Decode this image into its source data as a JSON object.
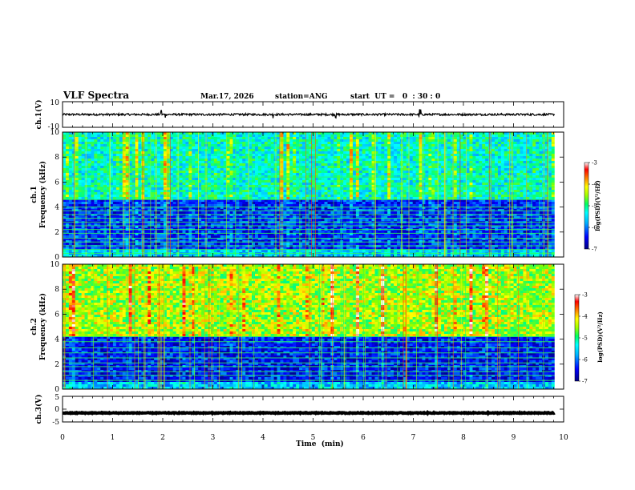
{
  "header": {
    "title": "VLF Spectra",
    "date": "Mar.17, 2026",
    "station": "station=ANG",
    "start_time": "start  UT =   0  : 30 : 0"
  },
  "chart_data": [
    {
      "type": "line",
      "name": "ch.1 waveform",
      "ylabel": "ch.1(V)",
      "ylim": [
        -10,
        10
      ],
      "yticks": [
        "10",
        "-10"
      ],
      "baseline": 0,
      "noise_amplitude": 0.8,
      "spike_times_min": [
        1.97,
        2.05,
        4.2,
        5.45,
        7.12,
        7.15
      ],
      "spike_amplitude": 3.5
    },
    {
      "type": "heatmap",
      "name": "ch.1 spectrogram",
      "ylabel": "ch.1\nFrequency (kHz)",
      "ylabel_line1": "ch.1",
      "ylabel_line2": "Frequency (kHz)",
      "ylim": [
        0,
        10
      ],
      "yticks": [
        "0",
        "2",
        "4",
        "6",
        "8",
        "10"
      ],
      "colorbar": {
        "label": "log(PSD)(V²/Hz)",
        "range": [
          -7,
          -3
        ],
        "ticks": [
          "-3",
          "-4",
          "-5",
          "-6",
          "-7"
        ]
      },
      "upper_band_level": -5.2,
      "lower_band_level": -6.3,
      "transition_khz": 4.6,
      "lines_khz": [
        0.3,
        0.6,
        0.9,
        1.2,
        1.5,
        1.9,
        2.2,
        2.5,
        2.8,
        3.1,
        3.4,
        3.7,
        4.0,
        4.6,
        5.6,
        6.4
      ]
    },
    {
      "type": "heatmap",
      "name": "ch.2 spectrogram",
      "ylabel": "ch.2\nFrequency (kHz)",
      "ylabel_line1": "ch.2",
      "ylabel_line2": "Frequency (kHz)",
      "ylim": [
        0,
        10
      ],
      "yticks": [
        "0",
        "2",
        "4",
        "6",
        "8",
        "10"
      ],
      "colorbar": {
        "label": "log(PSD)(V²/Hz)",
        "range": [
          -7,
          -3
        ],
        "ticks": [
          "-3",
          "-4",
          "-5",
          "-6",
          "-7"
        ]
      },
      "upper_band_level": -4.4,
      "lower_band_level": -6.4,
      "transition_khz": 4.2,
      "lines_khz": [
        0.7,
        1.1,
        1.4,
        1.8,
        2.1,
        2.5,
        2.9,
        3.3,
        3.8,
        4.2
      ]
    },
    {
      "type": "line",
      "name": "ch.3 waveform",
      "ylabel": "ch.3(V)",
      "ylim": [
        -5,
        5
      ],
      "yticks": [
        "5",
        "0",
        "-5"
      ],
      "baseline": -1.5,
      "noise_amplitude": 0.15
    }
  ],
  "x_axis": {
    "label": "Time  (min)",
    "range": [
      0,
      10
    ],
    "data_end": 9.82,
    "ticks": [
      "0",
      "1",
      "2",
      "3",
      "4",
      "5",
      "6",
      "7",
      "8",
      "9",
      "10"
    ]
  },
  "colormap": [
    "#000080",
    "#0000ff",
    "#00a0ff",
    "#00ffff",
    "#00ff80",
    "#80ff00",
    "#ffff00",
    "#ff8000",
    "#ff0000",
    "#ffffff"
  ]
}
